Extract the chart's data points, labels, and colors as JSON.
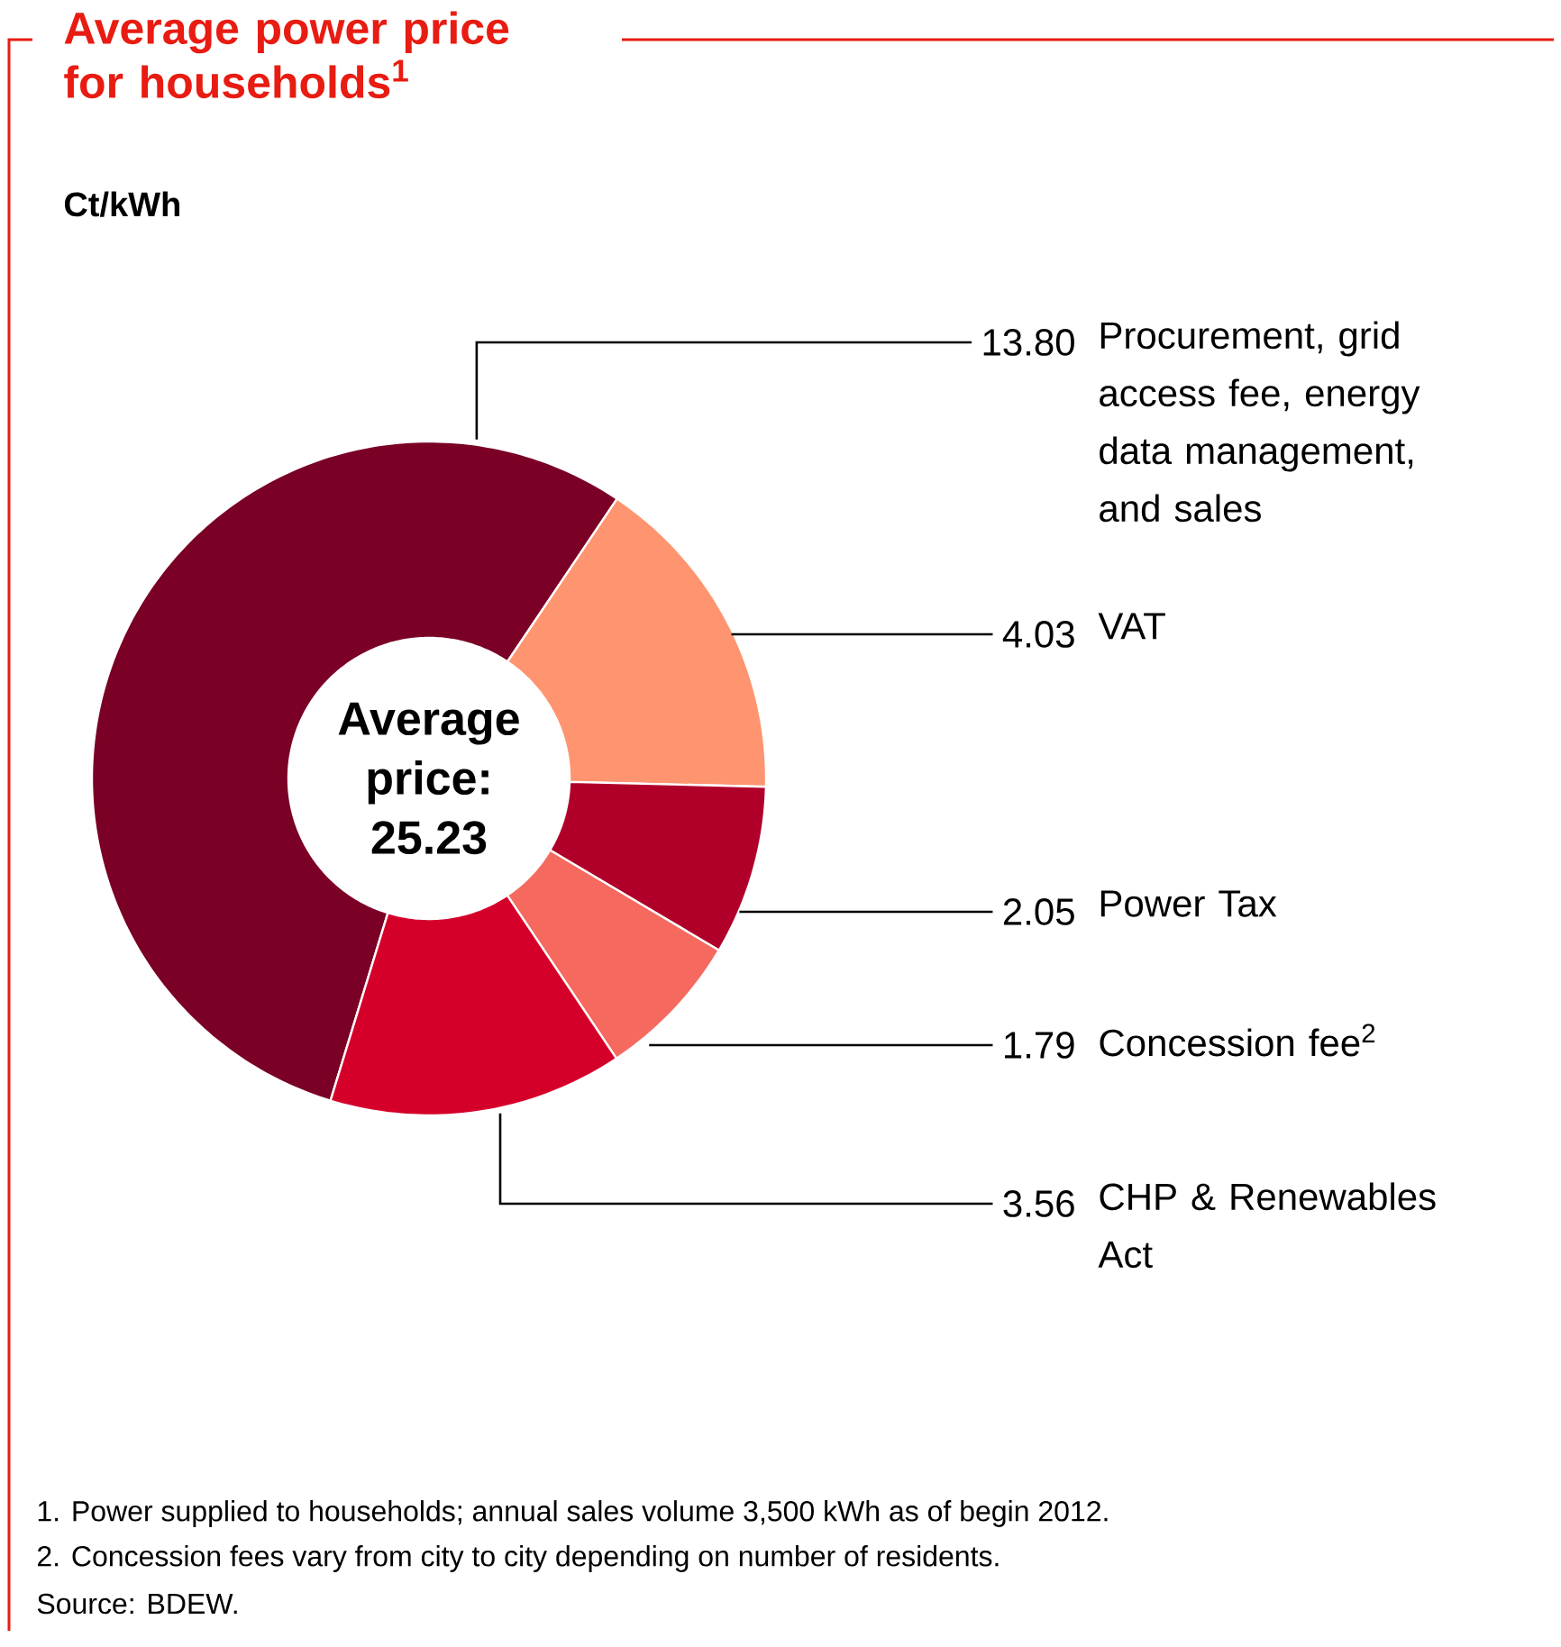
{
  "chart_data": {
    "type": "donut",
    "title": "Average power price for households$^{1}$",
    "subtitle": "Ct/kWh",
    "categories": [
      "Procurement, grid access fee, energy data management, and sales",
      "VAT",
      "Power Tax",
      "Concession fee$^{2}$",
      "CHP & Renewables Act"
    ],
    "values": [
      13.8,
      4.03,
      2.05,
      1.79,
      3.56
    ],
    "value_labels": [
      "13.80",
      "4.03",
      "2.05",
      "1.79",
      "3.56"
    ],
    "colors": [
      "#7a0026",
      "#ff9470",
      "#b0002a",
      "#f5695f",
      "#d4002a"
    ],
    "annotations": [
      "Average price: 25.23",
      "1.  Power supplied to households; annual sales volume 3,500 kWh as of begin 2012.",
      "2.  Concession fees vary from city to city depending on number of residents.",
      "Source: BDEW."
    ]
  }
}
